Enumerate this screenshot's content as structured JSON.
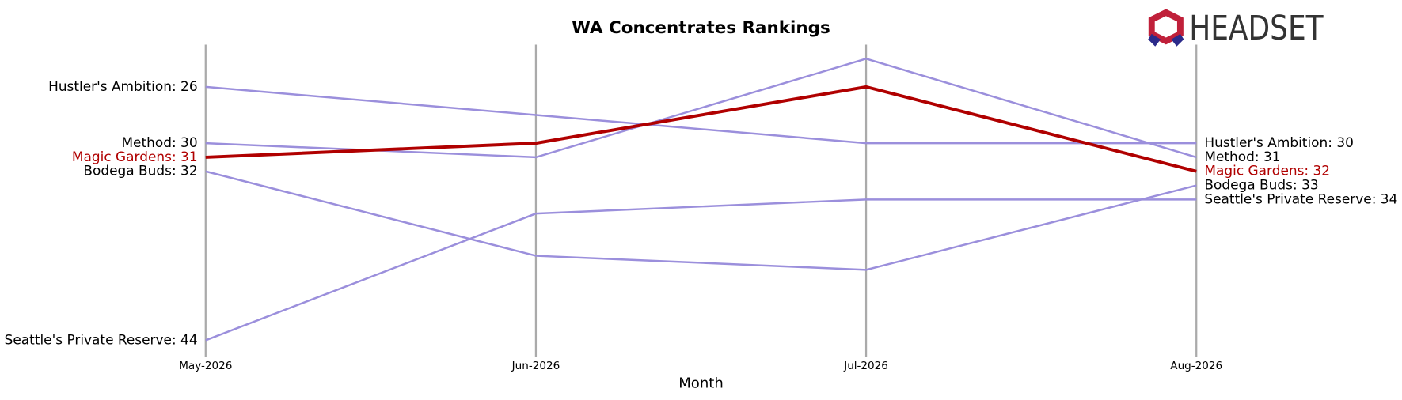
{
  "chart_data": {
    "type": "bump",
    "title": "WA Concentrates Rankings",
    "x_label": "Month",
    "logo": "HEADSET",
    "categories": [
      "May-2026",
      "Jun-2026",
      "Jul-2026",
      "Aug-2026"
    ],
    "ylim": [
      45.2,
      23
    ],
    "grid_color": "#aaaaaa",
    "series": [
      {
        "name": "Hustler's Ambition",
        "color": "#9b8fdc",
        "values": [
          26,
          28,
          30,
          30
        ],
        "value_labels": [
          "Hustler's Ambition: 26",
          null,
          null,
          "Hustler's Ambition: 30"
        ]
      },
      {
        "name": "Method",
        "color": "#9b8fdc",
        "values": [
          30,
          31,
          24,
          31
        ],
        "value_labels": [
          "Method: 30",
          null,
          null,
          "Method: 31"
        ]
      },
      {
        "name": "Bodega Buds",
        "color": "#9b8fdc",
        "values": [
          32,
          38,
          39,
          33
        ],
        "value_labels": [
          "Bodega Buds: 32",
          null,
          null,
          "Bodega Buds: 33"
        ]
      },
      {
        "name": "Seattle's Private Reserve",
        "color": "#9b8fdc",
        "values": [
          44,
          35,
          34,
          34
        ],
        "value_labels": [
          "Seattle's Private Reserve: 44",
          null,
          null,
          "Seattle's Private Reserve: 34"
        ]
      },
      {
        "name": "Magic Gardens",
        "color": "#b00000",
        "highlight": true,
        "values": [
          31,
          30,
          26,
          32
        ],
        "value_labels": [
          "Magic Gardens: 31",
          null,
          null,
          "Magic Gardens: 32"
        ]
      }
    ]
  }
}
